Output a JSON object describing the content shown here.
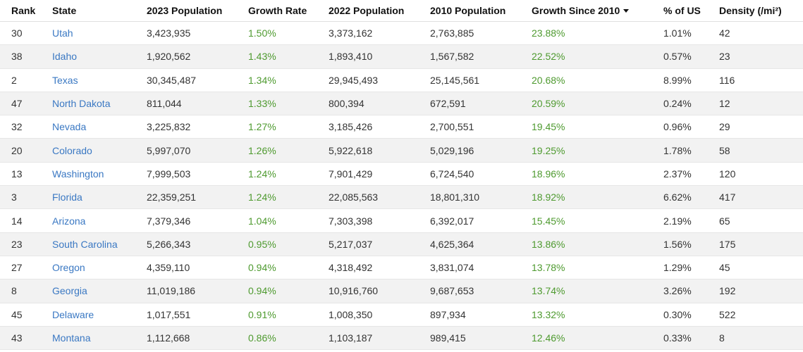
{
  "headers": {
    "rank": "Rank",
    "state": "State",
    "pop2023": "2023 Population",
    "growth_rate": "Growth Rate",
    "pop2022": "2022 Population",
    "pop2010": "2010 Population",
    "growth_since_2010": "Growth Since 2010",
    "pct_us": "% of US",
    "density": "Density (/mi²)"
  },
  "sort": {
    "column": "growth_since_2010",
    "direction": "descending",
    "annotation": "red hand-drawn underline",
    "annotation_color": "#e02020"
  },
  "colors": {
    "link": "#3a78c3",
    "positive": "#4e9a2f",
    "row_stripe": "#f2f2f2"
  },
  "rows": [
    {
      "rank": "30",
      "state": "Utah",
      "pop2023": "3,423,935",
      "growth_rate": "1.50%",
      "pop2022": "3,373,162",
      "pop2010": "2,763,885",
      "growth_since_2010": "23.88%",
      "pct_us": "1.01%",
      "density": "42"
    },
    {
      "rank": "38",
      "state": "Idaho",
      "pop2023": "1,920,562",
      "growth_rate": "1.43%",
      "pop2022": "1,893,410",
      "pop2010": "1,567,582",
      "growth_since_2010": "22.52%",
      "pct_us": "0.57%",
      "density": "23"
    },
    {
      "rank": "2",
      "state": "Texas",
      "pop2023": "30,345,487",
      "growth_rate": "1.34%",
      "pop2022": "29,945,493",
      "pop2010": "25,145,561",
      "growth_since_2010": "20.68%",
      "pct_us": "8.99%",
      "density": "116"
    },
    {
      "rank": "47",
      "state": "North Dakota",
      "pop2023": "811,044",
      "growth_rate": "1.33%",
      "pop2022": "800,394",
      "pop2010": "672,591",
      "growth_since_2010": "20.59%",
      "pct_us": "0.24%",
      "density": "12"
    },
    {
      "rank": "32",
      "state": "Nevada",
      "pop2023": "3,225,832",
      "growth_rate": "1.27%",
      "pop2022": "3,185,426",
      "pop2010": "2,700,551",
      "growth_since_2010": "19.45%",
      "pct_us": "0.96%",
      "density": "29"
    },
    {
      "rank": "20",
      "state": "Colorado",
      "pop2023": "5,997,070",
      "growth_rate": "1.26%",
      "pop2022": "5,922,618",
      "pop2010": "5,029,196",
      "growth_since_2010": "19.25%",
      "pct_us": "1.78%",
      "density": "58"
    },
    {
      "rank": "13",
      "state": "Washington",
      "pop2023": "7,999,503",
      "growth_rate": "1.24%",
      "pop2022": "7,901,429",
      "pop2010": "6,724,540",
      "growth_since_2010": "18.96%",
      "pct_us": "2.37%",
      "density": "120"
    },
    {
      "rank": "3",
      "state": "Florida",
      "pop2023": "22,359,251",
      "growth_rate": "1.24%",
      "pop2022": "22,085,563",
      "pop2010": "18,801,310",
      "growth_since_2010": "18.92%",
      "pct_us": "6.62%",
      "density": "417"
    },
    {
      "rank": "14",
      "state": "Arizona",
      "pop2023": "7,379,346",
      "growth_rate": "1.04%",
      "pop2022": "7,303,398",
      "pop2010": "6,392,017",
      "growth_since_2010": "15.45%",
      "pct_us": "2.19%",
      "density": "65"
    },
    {
      "rank": "23",
      "state": "South Carolina",
      "pop2023": "5,266,343",
      "growth_rate": "0.95%",
      "pop2022": "5,217,037",
      "pop2010": "4,625,364",
      "growth_since_2010": "13.86%",
      "pct_us": "1.56%",
      "density": "175"
    },
    {
      "rank": "27",
      "state": "Oregon",
      "pop2023": "4,359,110",
      "growth_rate": "0.94%",
      "pop2022": "4,318,492",
      "pop2010": "3,831,074",
      "growth_since_2010": "13.78%",
      "pct_us": "1.29%",
      "density": "45"
    },
    {
      "rank": "8",
      "state": "Georgia",
      "pop2023": "11,019,186",
      "growth_rate": "0.94%",
      "pop2022": "10,916,760",
      "pop2010": "9,687,653",
      "growth_since_2010": "13.74%",
      "pct_us": "3.26%",
      "density": "192"
    },
    {
      "rank": "45",
      "state": "Delaware",
      "pop2023": "1,017,551",
      "growth_rate": "0.91%",
      "pop2022": "1,008,350",
      "pop2010": "897,934",
      "growth_since_2010": "13.32%",
      "pct_us": "0.30%",
      "density": "522"
    },
    {
      "rank": "43",
      "state": "Montana",
      "pop2023": "1,112,668",
      "growth_rate": "0.86%",
      "pop2022": "1,103,187",
      "pop2010": "989,415",
      "growth_since_2010": "12.46%",
      "pct_us": "0.33%",
      "density": "8"
    }
  ]
}
